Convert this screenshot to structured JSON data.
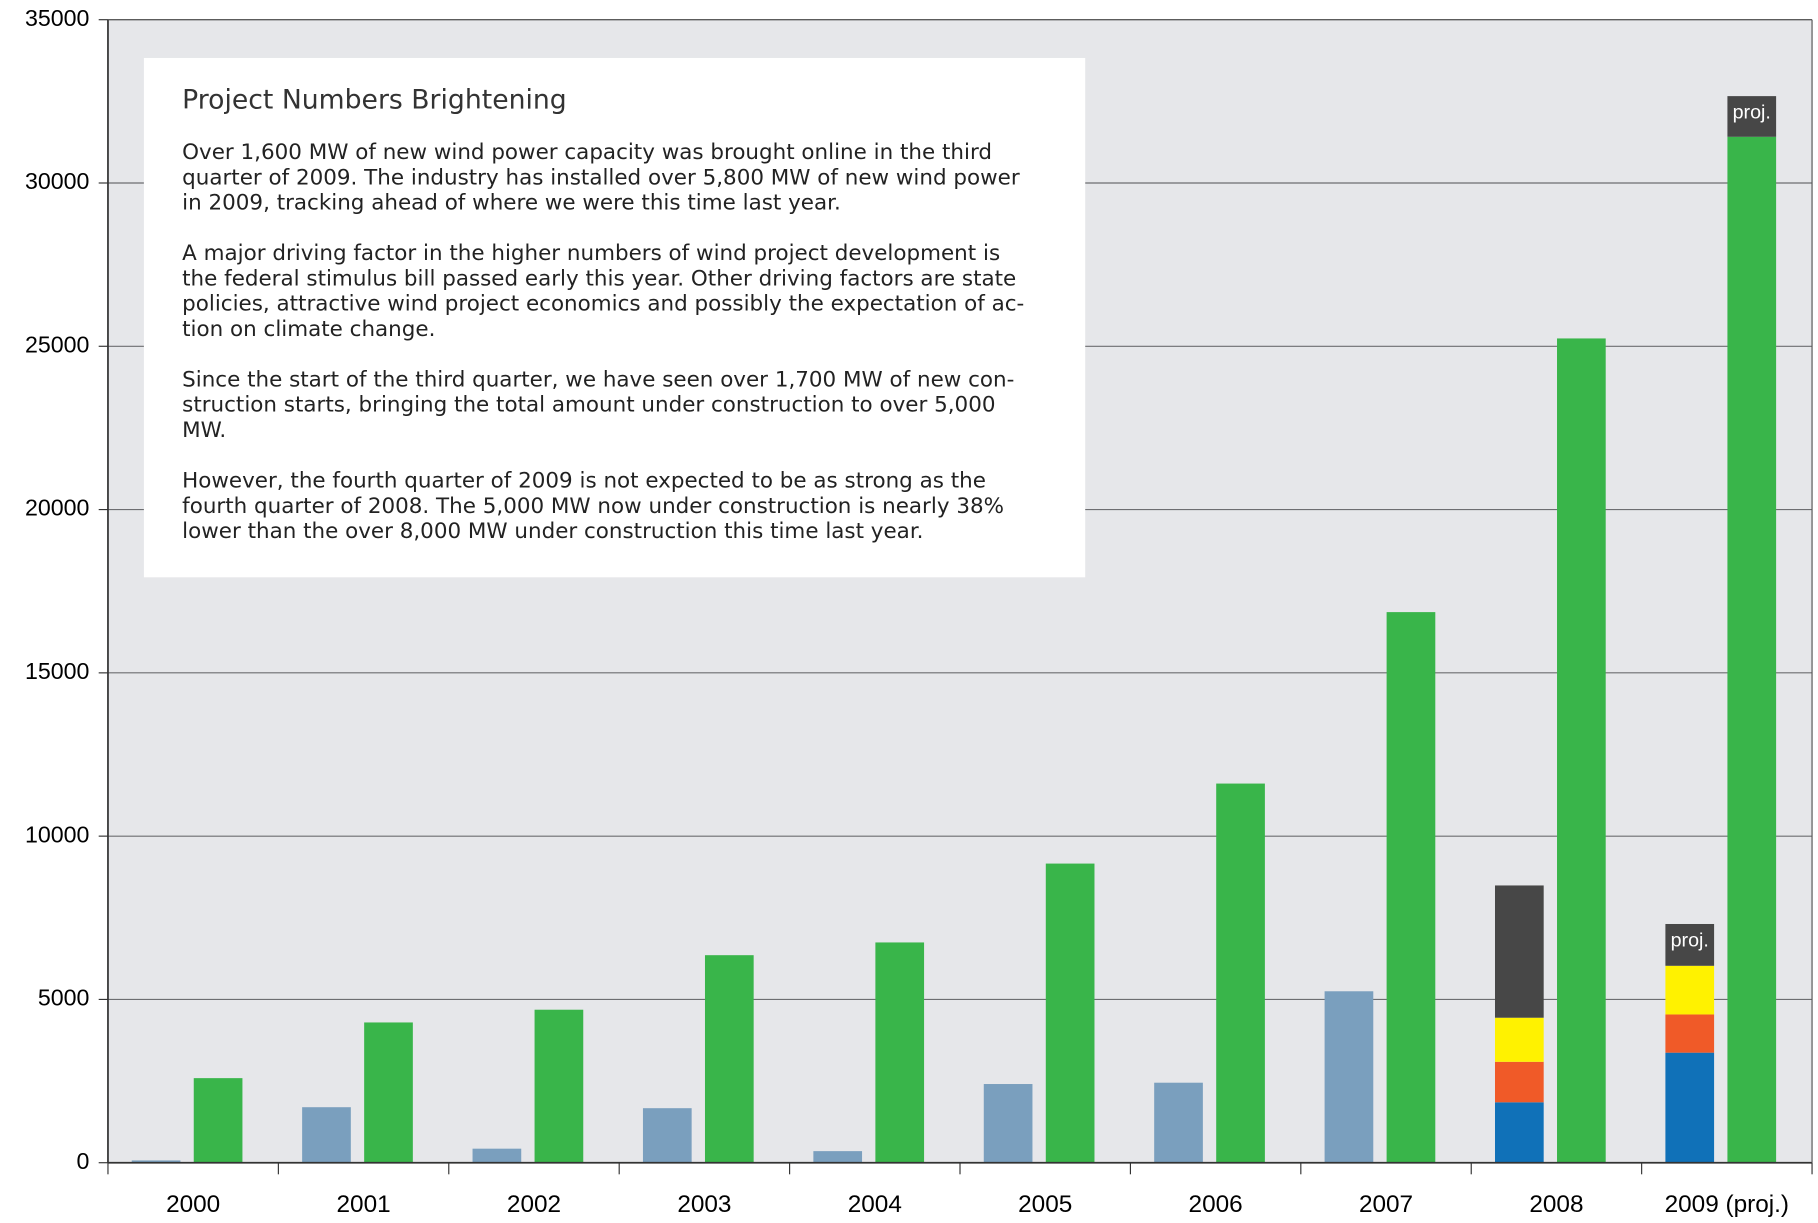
{
  "chart_data": {
    "type": "bar",
    "categories": [
      "2000",
      "2001",
      "2002",
      "2003",
      "2004",
      "2005",
      "2006",
      "2007",
      "2008",
      "2009 (proj.)"
    ],
    "series": [
      {
        "color": "#7a9fbe",
        "stack": "left",
        "values": [
          70,
          1700,
          430,
          1670,
          355,
          2410,
          2450,
          5250,
          null,
          null
        ]
      },
      {
        "color": "#1071b8",
        "stack": "left",
        "values": [
          null,
          null,
          null,
          null,
          null,
          null,
          null,
          null,
          1850,
          3370
        ]
      },
      {
        "color": "#f05a28",
        "stack": "left",
        "values": [
          null,
          null,
          null,
          null,
          null,
          null,
          null,
          null,
          1240,
          1170
        ]
      },
      {
        "color": "#fff200",
        "stack": "left",
        "values": [
          null,
          null,
          null,
          null,
          null,
          null,
          null,
          null,
          1350,
          1490
        ]
      },
      {
        "color": "#474747",
        "stack": "left",
        "values": [
          null,
          null,
          null,
          null,
          null,
          null,
          null,
          null,
          4050,
          1280
        ],
        "value_labels": [
          null,
          null,
          null,
          null,
          null,
          null,
          null,
          null,
          null,
          "proj."
        ]
      },
      {
        "color": "#39b54a",
        "stack": "right",
        "values": [
          2590,
          4295,
          4685,
          6355,
          6745,
          9160,
          11610,
          16860,
          25240,
          31415
        ]
      },
      {
        "color": "#474747",
        "stack": "right",
        "values": [
          null,
          null,
          null,
          null,
          null,
          null,
          null,
          null,
          null,
          1245
        ],
        "value_labels": [
          null,
          null,
          null,
          null,
          null,
          null,
          null,
          null,
          null,
          "proj."
        ]
      }
    ],
    "ylim": [
      0,
      35000
    ],
    "yticks": [
      0,
      5000,
      10000,
      15000,
      20000,
      25000,
      30000,
      35000
    ],
    "grid": true,
    "annotation": {
      "title": "Project Numbers Brightening",
      "paragraphs": [
        [
          "Over 1,600 MW of new wind power capacity was brought online in the third",
          "quarter of 2009.  The industry has installed over 5,800 MW of new wind power",
          "in 2009, tracking ahead of where we were this time last year."
        ],
        [
          "A major driving factor in the higher numbers of wind project development is",
          "the federal stimulus bill passed early this year.  Other driving factors are state",
          "policies, attractive wind project economics and possibly the expectation of ac-",
          "tion on climate change."
        ],
        [
          "Since the start of the third quarter, we have seen over 1,700 MW of new con-",
          "struction starts, bringing the total amount under construction to over 5,000",
          "MW."
        ],
        [
          "However, the fourth quarter of 2009 is not expected to be as strong as the",
          "fourth quarter of 2008.  The 5,000 MW now under construction is nearly 38%",
          "lower than the over 8,000 MW under construction this time last year."
        ]
      ]
    }
  }
}
